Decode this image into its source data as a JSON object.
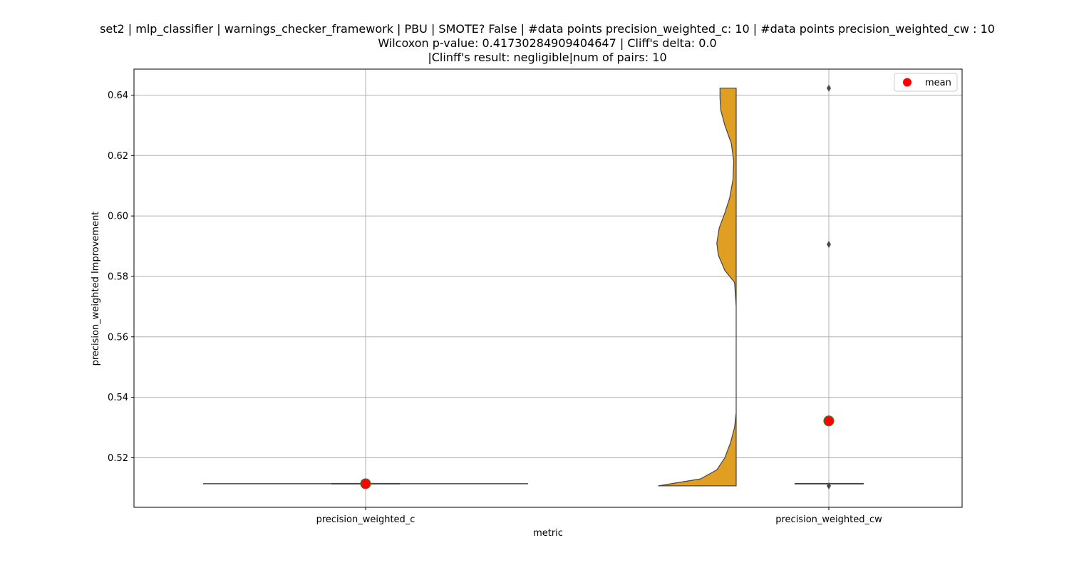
{
  "chart_data": {
    "type": "violin",
    "title_lines": [
      "set2 | mlp_classifier | warnings_checker_framework | PBU | SMOTE? False | #data points precision_weighted_c: 10 | #data points precision_weighted_cw : 10",
      "Wilcoxon p-value: 0.41730284909404647 | Cliff's delta: 0.0",
      "|Clinff's result: negligible|num of pairs: 10"
    ],
    "xlabel": "metric",
    "ylabel": "precision_weighted Improvement",
    "categories": [
      "precision_weighted_c",
      "precision_weighted_cw"
    ],
    "ylim": [
      0.5036,
      0.6486
    ],
    "yticks": [
      0.52,
      0.54,
      0.56,
      0.58,
      0.6,
      0.62,
      0.64
    ],
    "ytick_labels": [
      "0.52",
      "0.54",
      "0.56",
      "0.58",
      "0.60",
      "0.62",
      "0.64"
    ],
    "grid": true,
    "legend": {
      "position": "top-right",
      "entries": [
        "mean"
      ]
    },
    "colors": {
      "violin_fill": "#e09e22",
      "violin_edge": "#444444",
      "mean_marker": "#ff0000",
      "mean_edge": "#2e8b2e",
      "outlier": "#4a4a4a"
    },
    "series": [
      {
        "category": "precision_weighted_c",
        "values_constant": 0.5114,
        "mean": 0.5114,
        "box": {
          "q1": 0.5114,
          "median": 0.5114,
          "q3": 0.5114
        },
        "outliers": []
      },
      {
        "category": "precision_weighted_cw",
        "min": 0.5107,
        "max": 0.6423,
        "mean": 0.5322,
        "box": {
          "q1": 0.5114,
          "median": 0.5114,
          "q3": 0.5115
        },
        "outliers": [
          0.6423,
          0.5906,
          0.5107
        ],
        "density_profile": [
          [
            0.5107,
            0.52
          ],
          [
            0.513,
            0.78
          ],
          [
            0.516,
            0.88
          ],
          [
            0.52,
            0.93
          ],
          [
            0.525,
            0.965
          ],
          [
            0.53,
            0.99
          ],
          [
            0.535,
            1.0
          ],
          [
            0.54,
            1.0
          ],
          [
            0.55,
            1.0
          ],
          [
            0.56,
            1.0
          ],
          [
            0.57,
            1.0
          ],
          [
            0.578,
            0.99
          ],
          [
            0.582,
            0.93
          ],
          [
            0.587,
            0.89
          ],
          [
            0.591,
            0.88
          ],
          [
            0.596,
            0.895
          ],
          [
            0.601,
            0.93
          ],
          [
            0.606,
            0.96
          ],
          [
            0.612,
            0.98
          ],
          [
            0.618,
            0.985
          ],
          [
            0.624,
            0.97
          ],
          [
            0.63,
            0.93
          ],
          [
            0.635,
            0.905
          ],
          [
            0.639,
            0.9
          ],
          [
            0.6423,
            0.9
          ]
        ]
      }
    ]
  }
}
